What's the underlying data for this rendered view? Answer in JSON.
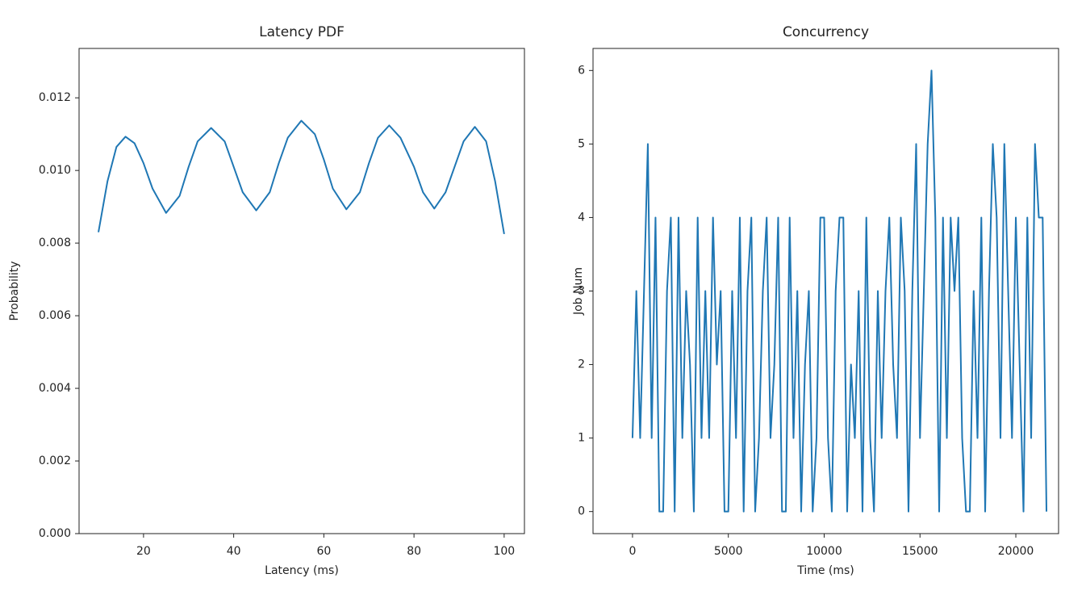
{
  "chart_data": [
    {
      "type": "line",
      "title": "Latency PDF",
      "xlabel": "Latency (ms)",
      "ylabel": "Probability",
      "color": "#1f77b4",
      "x": [
        10,
        12,
        14,
        16,
        18,
        20,
        22,
        25,
        28,
        30,
        32,
        35,
        38,
        40,
        42,
        45,
        48,
        50,
        52,
        55,
        58,
        60,
        62,
        65,
        68,
        70,
        72,
        74.5,
        77,
        80,
        82,
        84.5,
        87,
        89,
        91,
        93.5,
        96,
        98,
        100
      ],
      "values": [
        0.0083,
        0.0097,
        0.01065,
        0.01093,
        0.01075,
        0.0102,
        0.0095,
        0.00883,
        0.0093,
        0.0101,
        0.0108,
        0.01117,
        0.0108,
        0.0101,
        0.0094,
        0.0089,
        0.0094,
        0.0102,
        0.0109,
        0.01137,
        0.011,
        0.0103,
        0.0095,
        0.00893,
        0.0094,
        0.0102,
        0.0109,
        0.01124,
        0.0109,
        0.0101,
        0.0094,
        0.00895,
        0.0094,
        0.0101,
        0.0108,
        0.0112,
        0.0108,
        0.0097,
        0.00825
      ],
      "xlim": [
        5.7,
        104.5
      ],
      "ylim": [
        0,
        0.01336
      ],
      "xticks": [
        20,
        40,
        60,
        80,
        100
      ],
      "yticks": [
        {
          "value": 0,
          "label": "0.000"
        },
        {
          "value": 0.002,
          "label": "0.002"
        },
        {
          "value": 0.004,
          "label": "0.004"
        },
        {
          "value": 0.006,
          "label": "0.006"
        },
        {
          "value": 0.008,
          "label": "0.008"
        },
        {
          "value": 0.01,
          "label": "0.010"
        },
        {
          "value": 0.012,
          "label": "0.012"
        }
      ]
    },
    {
      "type": "line",
      "title": "Concurrency",
      "xlabel": "Time (ms)",
      "ylabel": "Job Num",
      "color": "#1f77b4",
      "x": [
        0,
        200,
        400,
        600,
        800,
        1000,
        1200,
        1400,
        1600,
        1800,
        2000,
        2200,
        2400,
        2600,
        2800,
        3000,
        3200,
        3400,
        3600,
        3800,
        4000,
        4200,
        4400,
        4600,
        4800,
        5000,
        5200,
        5400,
        5600,
        5800,
        6000,
        6200,
        6400,
        6600,
        6800,
        7000,
        7200,
        7400,
        7600,
        7800,
        8000,
        8200,
        8400,
        8600,
        8800,
        9000,
        9200,
        9400,
        9600,
        9800,
        10000,
        10200,
        10400,
        10600,
        10800,
        11000,
        11200,
        11400,
        11600,
        11800,
        12000,
        12200,
        12400,
        12600,
        12800,
        13000,
        13200,
        13400,
        13600,
        13800,
        14000,
        14200,
        14400,
        14600,
        14800,
        15000,
        15200,
        15400,
        15600,
        15800,
        16000,
        16200,
        16400,
        16600,
        16800,
        17000,
        17200,
        17400,
        17600,
        17800,
        18000,
        18200,
        18400,
        18600,
        18800,
        19000,
        19200,
        19400,
        19600,
        19800,
        20000,
        20200,
        20400,
        20600,
        20800,
        21000,
        21200,
        21400,
        21600
      ],
      "values": [
        1,
        3,
        1,
        3,
        5,
        1,
        4,
        0,
        0,
        3,
        4,
        0,
        4,
        1,
        3,
        2,
        0,
        4,
        1,
        3,
        1,
        4,
        2,
        3,
        0,
        0,
        3,
        1,
        4,
        0,
        3,
        4,
        0,
        1,
        3,
        4,
        1,
        2,
        4,
        0,
        0,
        4,
        1,
        3,
        0,
        2,
        3,
        0,
        1,
        4,
        4,
        1,
        0,
        3,
        4,
        4,
        0,
        2,
        1,
        3,
        0,
        4,
        1,
        0,
        3,
        1,
        3,
        4,
        2,
        1,
        4,
        3,
        0,
        3,
        5,
        1,
        3,
        5,
        6,
        4,
        0,
        4,
        1,
        4,
        3,
        4,
        1,
        0,
        0,
        3,
        1,
        4,
        0,
        3,
        5,
        4,
        1,
        5,
        3,
        1,
        4,
        2,
        0,
        4,
        1,
        5,
        4,
        4,
        0
      ],
      "xlim": [
        -2060,
        22230
      ],
      "ylim": [
        -0.3,
        6.3
      ],
      "xticks": [
        0,
        5000,
        10000,
        15000,
        20000
      ],
      "yticks": [
        0,
        1,
        2,
        3,
        4,
        5,
        6
      ]
    }
  ]
}
